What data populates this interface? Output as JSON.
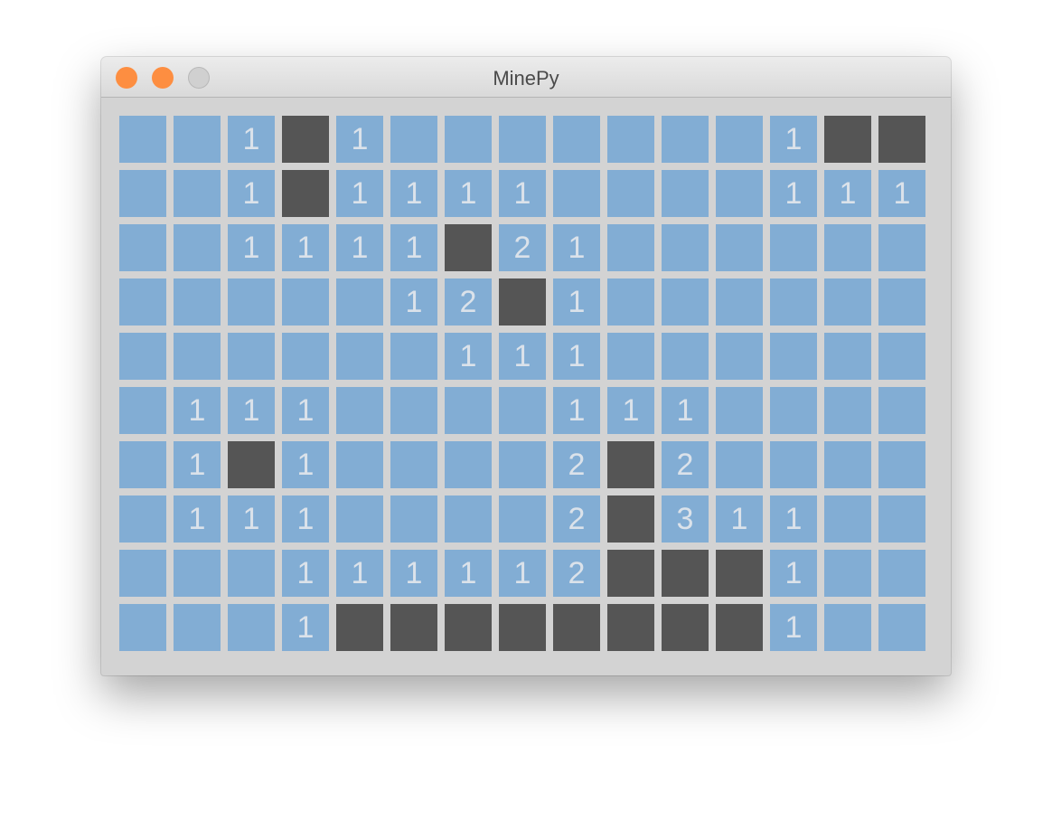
{
  "window": {
    "title": "MinePy",
    "buttons": {
      "close_color": "#fd8e41",
      "minimize_color": "#fd8e41",
      "zoom_color": "#d0d0d0"
    }
  },
  "colors": {
    "revealed": "#82add4",
    "unrevealed": "#555555",
    "number": "#dbe2ea",
    "background": "#d3d3d3"
  },
  "legend": {
    "D": "dark unrevealed cell",
    "": "empty revealed cell"
  },
  "board": [
    [
      "",
      "",
      "1",
      "D",
      "1",
      "",
      "",
      "",
      "",
      "",
      "",
      "",
      "1",
      "D",
      "D"
    ],
    [
      "",
      "",
      "1",
      "D",
      "1",
      "1",
      "1",
      "1",
      "",
      "",
      "",
      "",
      "1",
      "1",
      "1"
    ],
    [
      "",
      "",
      "1",
      "1",
      "1",
      "1",
      "D",
      "2",
      "1",
      "",
      "",
      "",
      "",
      "",
      ""
    ],
    [
      "",
      "",
      "",
      "",
      "",
      "1",
      "2",
      "D",
      "1",
      "",
      "",
      "",
      "",
      "",
      ""
    ],
    [
      "",
      "",
      "",
      "",
      "",
      "",
      "1",
      "1",
      "1",
      "",
      "",
      "",
      "",
      "",
      ""
    ],
    [
      "",
      "1",
      "1",
      "1",
      "",
      "",
      "",
      "",
      "1",
      "1",
      "1",
      "",
      "",
      "",
      ""
    ],
    [
      "",
      "1",
      "D",
      "1",
      "",
      "",
      "",
      "",
      "2",
      "D",
      "2",
      "",
      "",
      "",
      ""
    ],
    [
      "",
      "1",
      "1",
      "1",
      "",
      "",
      "",
      "",
      "2",
      "D",
      "3",
      "1",
      "1",
      "",
      ""
    ],
    [
      "",
      "",
      "",
      "1",
      "1",
      "1",
      "1",
      "1",
      "2",
      "D",
      "D",
      "D",
      "1",
      "",
      ""
    ],
    [
      "",
      "",
      "",
      "1",
      "D",
      "D",
      "D",
      "D",
      "D",
      "D",
      "D",
      "D",
      "1",
      "",
      ""
    ]
  ]
}
